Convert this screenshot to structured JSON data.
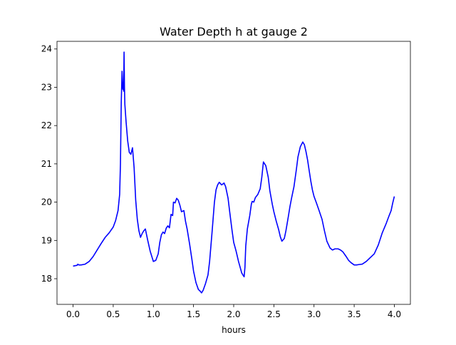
{
  "chart_data": {
    "type": "line",
    "title": "Water Depth h at gauge 2",
    "xlabel": "hours",
    "ylabel": "",
    "xlim": [
      -0.2,
      4.2
    ],
    "ylim": [
      17.33,
      24.2
    ],
    "xticks": [
      0.0,
      0.5,
      1.0,
      1.5,
      2.0,
      2.5,
      3.0,
      3.5,
      4.0
    ],
    "xtick_labels": [
      "0.0",
      "0.5",
      "1.0",
      "1.5",
      "2.0",
      "2.5",
      "3.0",
      "3.5",
      "4.0"
    ],
    "yticks": [
      18,
      19,
      20,
      21,
      22,
      23,
      24
    ],
    "ytick_labels": [
      "18",
      "19",
      "20",
      "21",
      "22",
      "23",
      "24"
    ],
    "grid": false,
    "series": [
      {
        "color": "#0000ff",
        "x": [
          0.0,
          0.05,
          0.06,
          0.07,
          0.1,
          0.15,
          0.2,
          0.25,
          0.3,
          0.35,
          0.4,
          0.45,
          0.5,
          0.53,
          0.56,
          0.58,
          0.59,
          0.6,
          0.61,
          0.62,
          0.625,
          0.63,
          0.635,
          0.64,
          0.645,
          0.66,
          0.68,
          0.7,
          0.72,
          0.74,
          0.76,
          0.78,
          0.8,
          0.82,
          0.84,
          0.86,
          0.88,
          0.9,
          0.93,
          0.96,
          1.0,
          1.03,
          1.06,
          1.08,
          1.1,
          1.12,
          1.14,
          1.16,
          1.18,
          1.2,
          1.22,
          1.24,
          1.25,
          1.27,
          1.29,
          1.31,
          1.33,
          1.35,
          1.38,
          1.4,
          1.42,
          1.45,
          1.48,
          1.5,
          1.53,
          1.56,
          1.58,
          1.6,
          1.62,
          1.65,
          1.68,
          1.7,
          1.73,
          1.76,
          1.78,
          1.8,
          1.82,
          1.85,
          1.88,
          1.9,
          1.93,
          1.95,
          1.98,
          2.0,
          2.03,
          2.06,
          2.08,
          2.1,
          2.12,
          2.13,
          2.14,
          2.15,
          2.17,
          2.2,
          2.22,
          2.23,
          2.25,
          2.27,
          2.3,
          2.33,
          2.35,
          2.37,
          2.4,
          2.43,
          2.45,
          2.48,
          2.5,
          2.53,
          2.56,
          2.58,
          2.6,
          2.63,
          2.65,
          2.68,
          2.7,
          2.72,
          2.75,
          2.78,
          2.8,
          2.83,
          2.86,
          2.88,
          2.9,
          2.92,
          2.94,
          2.96,
          2.98,
          3.0,
          3.03,
          3.06,
          3.1,
          3.13,
          3.16,
          3.2,
          3.23,
          3.26,
          3.3,
          3.33,
          3.36,
          3.4,
          3.43,
          3.46,
          3.5,
          3.53,
          3.56,
          3.6,
          3.65,
          3.7,
          3.75,
          3.8,
          3.85,
          3.9,
          3.93,
          3.96,
          3.98,
          4.0
        ],
        "y": [
          18.33,
          18.35,
          18.38,
          18.36,
          18.36,
          18.38,
          18.45,
          18.58,
          18.75,
          18.92,
          19.08,
          19.2,
          19.35,
          19.52,
          19.78,
          20.2,
          21.0,
          22.6,
          23.42,
          22.95,
          23.1,
          22.9,
          23.92,
          23.0,
          22.55,
          22.1,
          21.6,
          21.3,
          21.25,
          21.42,
          20.9,
          20.05,
          19.55,
          19.25,
          19.08,
          19.18,
          19.25,
          19.3,
          19.0,
          18.72,
          18.45,
          18.48,
          18.65,
          18.95,
          19.15,
          19.22,
          19.18,
          19.32,
          19.38,
          19.33,
          19.68,
          19.65,
          20.0,
          19.98,
          20.1,
          20.05,
          19.92,
          19.75,
          19.78,
          19.5,
          19.3,
          18.92,
          18.5,
          18.2,
          17.9,
          17.72,
          17.68,
          17.63,
          17.7,
          17.88,
          18.1,
          18.45,
          19.2,
          20.0,
          20.32,
          20.45,
          20.52,
          20.45,
          20.5,
          20.4,
          20.1,
          19.75,
          19.25,
          18.95,
          18.72,
          18.45,
          18.3,
          18.15,
          18.08,
          18.05,
          18.3,
          18.85,
          19.3,
          19.65,
          19.95,
          20.02,
          20.0,
          20.12,
          20.2,
          20.35,
          20.65,
          21.05,
          20.95,
          20.65,
          20.3,
          19.95,
          19.75,
          19.5,
          19.28,
          19.1,
          18.98,
          19.05,
          19.25,
          19.62,
          19.88,
          20.1,
          20.4,
          20.85,
          21.18,
          21.45,
          21.57,
          21.5,
          21.32,
          21.1,
          20.82,
          20.55,
          20.32,
          20.15,
          19.98,
          19.8,
          19.55,
          19.25,
          18.98,
          18.8,
          18.75,
          18.78,
          18.78,
          18.75,
          18.7,
          18.58,
          18.48,
          18.42,
          18.36,
          18.36,
          18.37,
          18.38,
          18.45,
          18.55,
          18.65,
          18.88,
          19.2,
          19.45,
          19.62,
          19.78,
          19.98,
          20.15
        ]
      }
    ]
  }
}
